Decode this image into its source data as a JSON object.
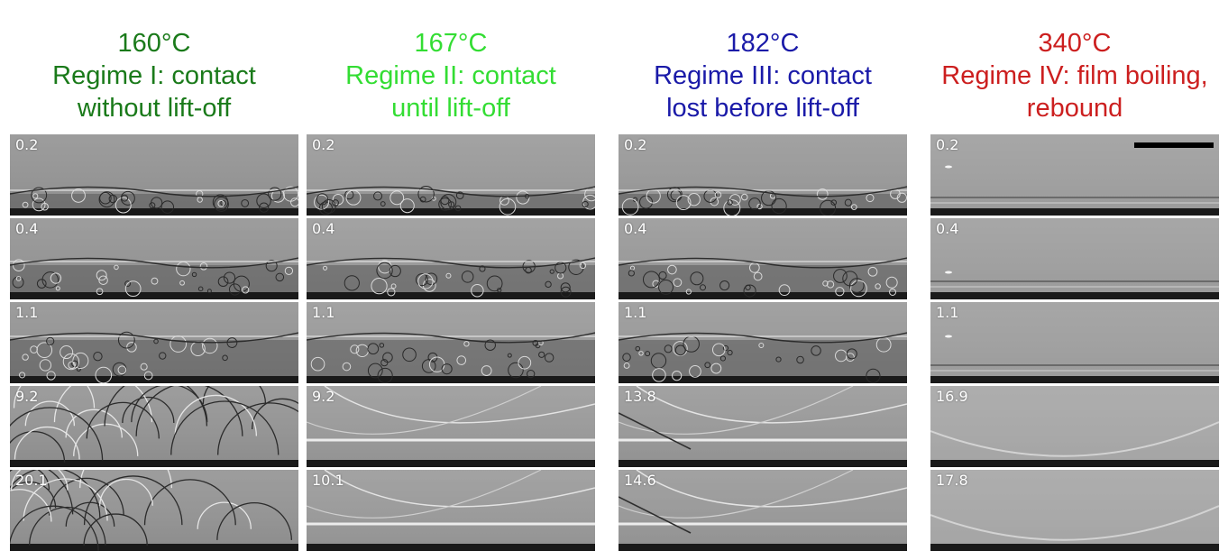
{
  "columns": [
    {
      "temp": "160°C",
      "line1": "Regime I: contact",
      "line2": "without lift-off",
      "color": "#1a7a1a",
      "labels": [
        "0.2",
        "0.4",
        "1.1",
        "9.2",
        "20.1"
      ]
    },
    {
      "temp": "167°C",
      "line1": "Regime II: contact",
      "line2": "until lift-off",
      "color": "#33dd33",
      "labels": [
        "0.2",
        "0.4",
        "1.1",
        "9.2",
        "10.1"
      ]
    },
    {
      "temp": "182°C",
      "line1": "Regime III: contact",
      "line2": "lost before lift-off",
      "color": "#1a1aa8",
      "labels": [
        "0.2",
        "0.4",
        "1.1",
        "13.8",
        "14.6"
      ]
    },
    {
      "temp": "340°C",
      "line1": "Regime IV: film boiling,",
      "line2": "rebound",
      "color": "#cc1f1f",
      "labels": [
        "0.2",
        "0.4",
        "1.1",
        "16.9",
        "17.8"
      ]
    }
  ]
}
